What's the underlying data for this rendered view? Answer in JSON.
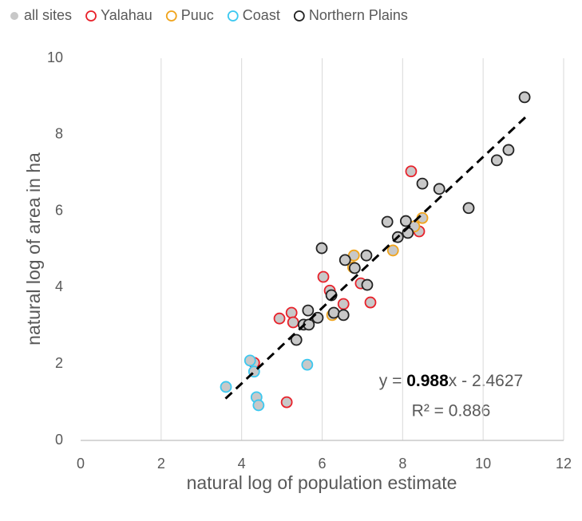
{
  "chart_data": {
    "type": "scatter",
    "xlabel": "natural log of population estimate",
    "ylabel": "natural log of area in ha",
    "xlim": [
      0,
      12
    ],
    "xticks": [
      0,
      2,
      4,
      6,
      8,
      10,
      12
    ],
    "ylim": [
      0,
      10
    ],
    "yticks": [
      0,
      2,
      4,
      6,
      8,
      10
    ],
    "grid": "x",
    "point_fill": {
      "name": "all sites",
      "color": "#c8c8c8"
    },
    "series": [
      {
        "name": "Yalahau",
        "color": "#e8212a",
        "x": [
          4.31,
          4.94,
          5.12,
          5.24,
          5.28,
          6.03,
          6.19,
          6.53,
          6.96,
          7.2,
          8.21,
          8.41
        ],
        "values": [
          2.03,
          3.19,
          1.0,
          3.34,
          3.09,
          4.28,
          3.92,
          3.57,
          4.11,
          3.61,
          7.04,
          5.47
        ]
      },
      {
        "name": "Puuc",
        "color": "#f0a41c",
        "x": [
          6.25,
          6.77,
          6.79,
          7.76,
          8.29,
          8.49
        ],
        "values": [
          3.28,
          4.53,
          4.84,
          4.97,
          5.6,
          5.82
        ]
      },
      {
        "name": "Coast",
        "color": "#3cc8f0",
        "x": [
          3.61,
          4.21,
          4.31,
          4.37,
          4.42,
          5.63
        ],
        "values": [
          1.4,
          2.09,
          1.8,
          1.13,
          0.92,
          1.98
        ]
      },
      {
        "name": "Northern Plains",
        "color": "#222222",
        "x": [
          5.36,
          5.54,
          5.67,
          5.65,
          5.89,
          5.99,
          6.23,
          6.29,
          6.53,
          6.57,
          6.81,
          7.1,
          7.12,
          7.62,
          7.88,
          8.08,
          8.13,
          8.49,
          8.91,
          9.64,
          10.34,
          10.63,
          11.03
        ],
        "values": [
          2.63,
          3.03,
          3.03,
          3.4,
          3.21,
          5.03,
          3.8,
          3.34,
          3.28,
          4.72,
          4.51,
          4.84,
          4.07,
          5.72,
          5.32,
          5.74,
          5.43,
          6.72,
          6.58,
          6.08,
          7.33,
          7.6,
          8.98
        ]
      }
    ],
    "trendline": {
      "slope": 0.988,
      "intercept": -2.4627,
      "xrange": [
        3.6,
        11.1
      ],
      "color": "#000000",
      "equation": [
        "y = ",
        "0.988",
        "x - 2.4627"
      ],
      "r2_label": "R² = 0.886",
      "r2": 0.886
    }
  }
}
